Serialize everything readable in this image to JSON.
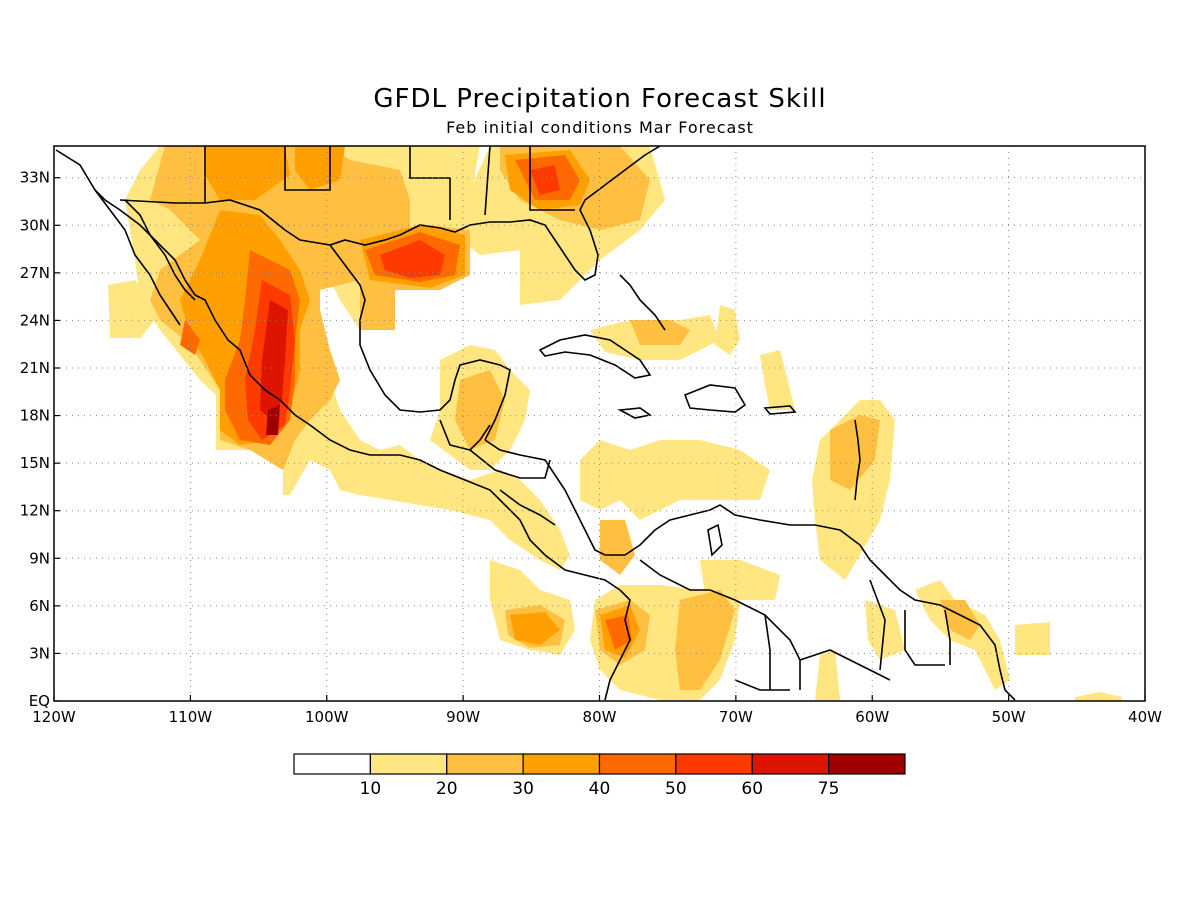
{
  "title": "GFDL Precipitation Forecast Skill",
  "subtitle": "Feb initial conditions  Mar Forecast",
  "axes": {
    "lon_ticks": [
      "120W",
      "110W",
      "100W",
      "90W",
      "80W",
      "70W",
      "60W",
      "50W",
      "40W"
    ],
    "lat_ticks": [
      "EQ",
      "3N",
      "6N",
      "9N",
      "12N",
      "15N",
      "18N",
      "21N",
      "24N",
      "27N",
      "30N",
      "33N"
    ],
    "lon_range": [
      -120,
      -40
    ],
    "lat_range": [
      0,
      35
    ],
    "grid": "dotted"
  },
  "colorbar": {
    "labels": [
      "10",
      "20",
      "30",
      "40",
      "50",
      "60",
      "75"
    ],
    "colors": [
      "#ffffff",
      "#ffe680",
      "#ffbf40",
      "#ffa000",
      "#ff6a00",
      "#ff3a00",
      "#dd1500",
      "#a00000"
    ]
  }
}
